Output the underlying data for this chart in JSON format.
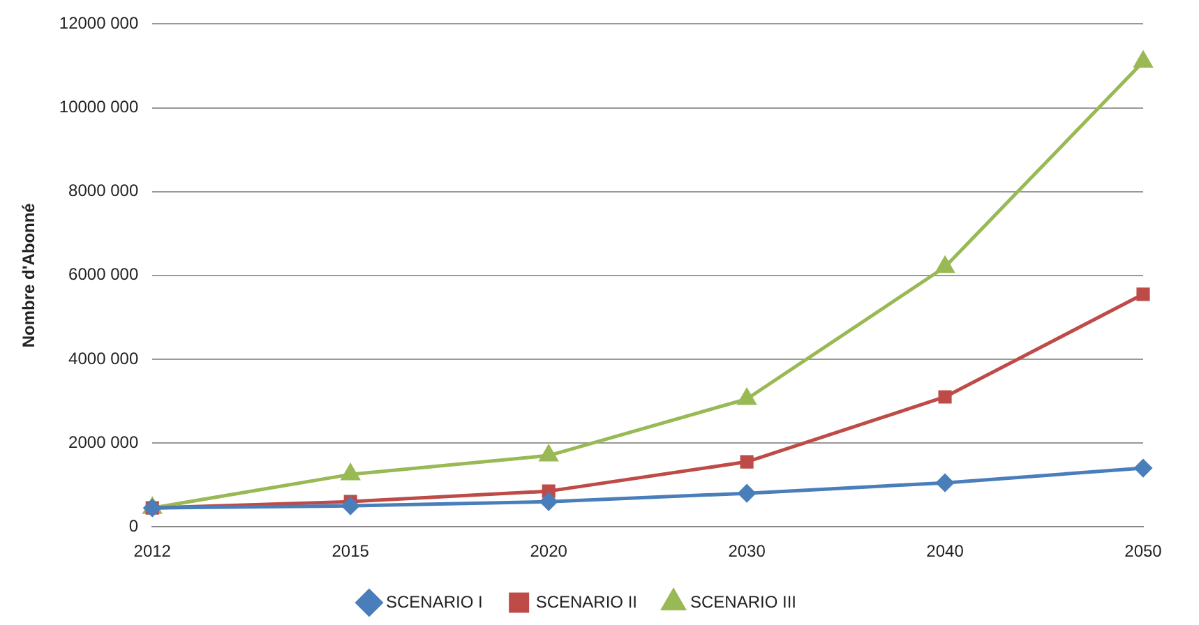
{
  "chart_data": {
    "type": "line",
    "ylabel": "Nombre d'Abonné",
    "categories": [
      "2012",
      "2015",
      "2020",
      "2030",
      "2040",
      "2050"
    ],
    "series": [
      {
        "name": "SCENARIO I",
        "color": "#4a7ebb",
        "marker": "diamond",
        "values": [
          450000,
          500000,
          600000,
          800000,
          1050000,
          1400000
        ]
      },
      {
        "name": "SCENARIO II",
        "color": "#be4b48",
        "marker": "square",
        "values": [
          450000,
          600000,
          850000,
          1550000,
          3100000,
          5550000
        ]
      },
      {
        "name": "SCENARIO III",
        "color": "#98b954",
        "marker": "triangle",
        "values": [
          450000,
          1250000,
          1700000,
          3050000,
          6200000,
          11100000
        ]
      }
    ],
    "ylim": [
      0,
      12000000
    ],
    "yticks": [
      {
        "value": 0,
        "label": "0"
      },
      {
        "value": 2000000,
        "label": "2000 000"
      },
      {
        "value": 4000000,
        "label": "4000 000"
      },
      {
        "value": 6000000,
        "label": "6000 000"
      },
      {
        "value": 8000000,
        "label": "8000 000"
      },
      {
        "value": 10000000,
        "label": "10000 000"
      },
      {
        "value": 12000000,
        "label": "12000 000"
      }
    ],
    "grid": "y",
    "legend": "bottom"
  }
}
